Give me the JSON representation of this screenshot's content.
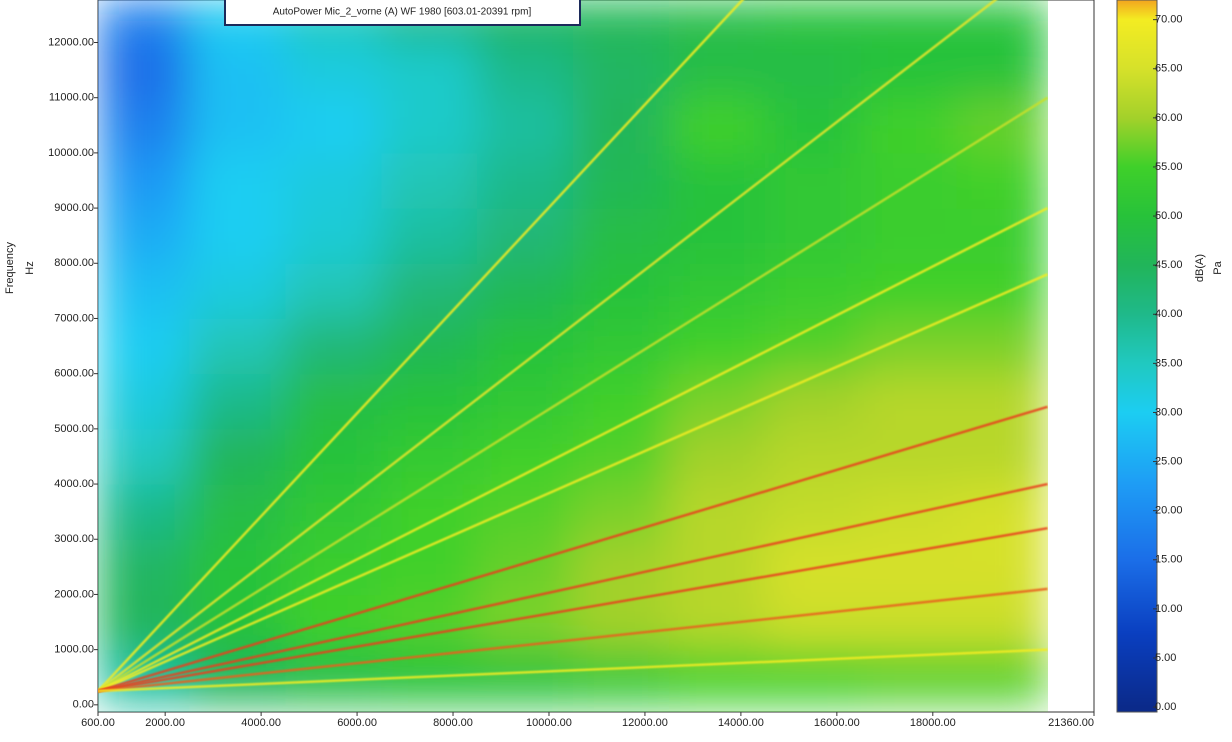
{
  "chart_data": {
    "type": "heatmap",
    "title": "AutoPower Mic_2_vorne (A) WF 1980 [603.01-20391 rpm]",
    "y_label": "Frequency",
    "y_unit": "Hz",
    "colorbar_label": "dB(A)",
    "colorbar_unit": "Pa",
    "xlim": [
      600,
      21360
    ],
    "ylim": [
      -130,
      12770
    ],
    "clim": [
      -0.5,
      72
    ],
    "xticks": [
      {
        "value": 600,
        "label": "600.00"
      },
      {
        "value": 2000,
        "label": "2000.00"
      },
      {
        "value": 4000,
        "label": "4000.00"
      },
      {
        "value": 6000,
        "label": "6000.00"
      },
      {
        "value": 8000,
        "label": "8000.00"
      },
      {
        "value": 10000,
        "label": "10000.00"
      },
      {
        "value": 12000,
        "label": "12000.00"
      },
      {
        "value": 14000,
        "label": "14000.00"
      },
      {
        "value": 16000,
        "label": "16000.00"
      },
      {
        "value": 18000,
        "label": "18000.00"
      },
      {
        "value": 21360,
        "label": "21360.00"
      }
    ],
    "yticks": [
      {
        "value": 0,
        "label": "0.00"
      },
      {
        "value": 1000,
        "label": "1000.00"
      },
      {
        "value": 2000,
        "label": "2000.00"
      },
      {
        "value": 3000,
        "label": "3000.00"
      },
      {
        "value": 4000,
        "label": "4000.00"
      },
      {
        "value": 5000,
        "label": "5000.00"
      },
      {
        "value": 6000,
        "label": "6000.00"
      },
      {
        "value": 7000,
        "label": "7000.00"
      },
      {
        "value": 8000,
        "label": "8000.00"
      },
      {
        "value": 9000,
        "label": "9000.00"
      },
      {
        "value": 10000,
        "label": "10000.00"
      },
      {
        "value": 11000,
        "label": "11000.00"
      },
      {
        "value": 12000,
        "label": "12000.00"
      }
    ],
    "cticks": [
      {
        "value": 0,
        "label": "0.00"
      },
      {
        "value": 5,
        "label": "5.00"
      },
      {
        "value": 10,
        "label": "10.00"
      },
      {
        "value": 15,
        "label": "15.00"
      },
      {
        "value": 20,
        "label": "20.00"
      },
      {
        "value": 25,
        "label": "25.00"
      },
      {
        "value": 30,
        "label": "30.00"
      },
      {
        "value": 35,
        "label": "35.00"
      },
      {
        "value": 40,
        "label": "40.00"
      },
      {
        "value": 45,
        "label": "45.00"
      },
      {
        "value": 50,
        "label": "50.00"
      },
      {
        "value": 55,
        "label": "55.00"
      },
      {
        "value": 60,
        "label": "60.00"
      },
      {
        "value": 65,
        "label": "65.00"
      },
      {
        "value": 70,
        "label": "70.00"
      }
    ],
    "colormap": [
      {
        "value": 0,
        "color": "#0b2a8a"
      },
      {
        "value": 7.5,
        "color": "#0a3fc0"
      },
      {
        "value": 15,
        "color": "#1b6ee8"
      },
      {
        "value": 22.5,
        "color": "#1e9bf5"
      },
      {
        "value": 30,
        "color": "#1ccdf2"
      },
      {
        "value": 35,
        "color": "#20c9c0"
      },
      {
        "value": 40,
        "color": "#1fb98a"
      },
      {
        "value": 45,
        "color": "#21b55a"
      },
      {
        "value": 50,
        "color": "#27c23a"
      },
      {
        "value": 55,
        "color": "#3fd02a"
      },
      {
        "value": 60,
        "color": "#a3d12a"
      },
      {
        "value": 65,
        "color": "#d6e12a"
      },
      {
        "value": 70,
        "color": "#f3ec22"
      },
      {
        "value": 75,
        "color": "#f23a1a"
      }
    ],
    "x_bins": [
      603,
      2500,
      4500,
      6500,
      8500,
      10500,
      12500,
      14500,
      16500,
      18500,
      20391
    ],
    "y_bins": [
      0,
      1000,
      2000,
      3000,
      4000,
      5000,
      6000,
      7000,
      8000,
      9000,
      10000,
      11000,
      12000,
      12770
    ],
    "z": [
      [
        38,
        45,
        48,
        50,
        50,
        52,
        55,
        55,
        56,
        56
      ],
      [
        45,
        50,
        55,
        56,
        58,
        60,
        62,
        64,
        64,
        64
      ],
      [
        44,
        50,
        54,
        55,
        57,
        60,
        62,
        65,
        65,
        65
      ],
      [
        40,
        48,
        52,
        55,
        56,
        58,
        62,
        63,
        64,
        65
      ],
      [
        35,
        45,
        50,
        53,
        55,
        56,
        60,
        62,
        62,
        62
      ],
      [
        32,
        40,
        48,
        50,
        52,
        55,
        58,
        60,
        62,
        62
      ],
      [
        30,
        36,
        42,
        46,
        50,
        52,
        55,
        56,
        58,
        58
      ],
      [
        28,
        32,
        36,
        42,
        46,
        50,
        52,
        54,
        55,
        55
      ],
      [
        25,
        30,
        33,
        38,
        42,
        48,
        50,
        52,
        54,
        54
      ],
      [
        22,
        30,
        32,
        36,
        40,
        46,
        50,
        52,
        54,
        55
      ],
      [
        18,
        28,
        30,
        34,
        38,
        45,
        55,
        50,
        55,
        57
      ],
      [
        15,
        28,
        32,
        34,
        40,
        44,
        48,
        48,
        50,
        50
      ],
      [
        18,
        30,
        35,
        40,
        44,
        46,
        48,
        50,
        50,
        50
      ]
    ],
    "x": [
      603,
      20391
    ],
    "series": [
      {
        "color": "#f3ec22",
        "values": [
          250,
          18700
        ]
      },
      {
        "color": "#e8e62a",
        "values": [
          250,
          13500
        ]
      },
      {
        "color": "#c8e02a",
        "values": [
          250,
          11000
        ]
      },
      {
        "color": "#f3ec22",
        "values": [
          250,
          9000
        ]
      },
      {
        "color": "#f3ec22",
        "values": [
          250,
          7800
        ]
      },
      {
        "color": "#e8401a",
        "values": [
          250,
          5400
        ]
      },
      {
        "color": "#e8401a",
        "values": [
          250,
          4000
        ]
      },
      {
        "color": "#e8401a",
        "values": [
          250,
          3200
        ]
      },
      {
        "color": "#e8601a",
        "values": [
          250,
          2100
        ]
      },
      {
        "color": "#f3ec22",
        "values": [
          250,
          1000
        ]
      }
    ]
  }
}
